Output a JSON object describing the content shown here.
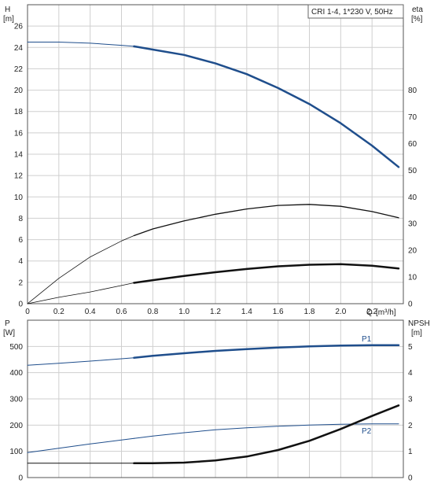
{
  "chart_data": [
    {
      "type": "line",
      "title": "CRI 1-4, 1*230 V, 50Hz",
      "xlabel": "Q [m³/h]",
      "xlim": [
        0,
        2.4
      ],
      "x_ticks": [
        0,
        0.2,
        0.4,
        0.6,
        0.8,
        1.0,
        1.2,
        1.4,
        1.6,
        1.8,
        2.0,
        2.2
      ],
      "y_left": {
        "label": "H",
        "unit": "[m]",
        "lim": [
          0,
          28
        ],
        "ticks": [
          0,
          2,
          4,
          6,
          8,
          10,
          12,
          14,
          16,
          18,
          20,
          22,
          24,
          26
        ]
      },
      "y_right": {
        "label": "eta",
        "unit": "[%]",
        "lim": [
          0,
          112
        ],
        "ticks": [
          0,
          10,
          20,
          30,
          40,
          50,
          60,
          70,
          80
        ]
      },
      "grid": true,
      "series": [
        {
          "axis": "left",
          "color": "#1f4e8c",
          "width_thin": 1,
          "width_thick": 2.5,
          "thick_from_x": 0.68,
          "x": [
            0,
            0.2,
            0.4,
            0.6,
            0.68,
            0.8,
            1.0,
            1.2,
            1.4,
            1.6,
            1.8,
            2.0,
            2.2,
            2.37
          ],
          "y": [
            24.5,
            24.5,
            24.4,
            24.2,
            24.1,
            23.8,
            23.3,
            22.5,
            21.5,
            20.2,
            18.7,
            16.9,
            14.8,
            12.8
          ]
        },
        {
          "axis": "right",
          "color": "#111111",
          "width_thin": 0.8,
          "width_thick": 1.3,
          "thick_from_x": 0.68,
          "x": [
            0,
            0.2,
            0.4,
            0.6,
            0.68,
            0.8,
            1.0,
            1.2,
            1.4,
            1.6,
            1.8,
            2.0,
            2.2,
            2.37
          ],
          "y": [
            0,
            9.5,
            17.5,
            23.5,
            25.5,
            28,
            31,
            33.5,
            35.5,
            36.8,
            37.2,
            36.5,
            34.5,
            32.2
          ]
        },
        {
          "axis": "left",
          "color": "#111111",
          "width_thin": 0.8,
          "width_thick": 2.5,
          "thick_from_x": 0.68,
          "x": [
            0,
            0.2,
            0.4,
            0.6,
            0.68,
            0.8,
            1.0,
            1.2,
            1.4,
            1.6,
            1.8,
            2.0,
            2.2,
            2.37
          ],
          "y": [
            0,
            0.6,
            1.1,
            1.7,
            1.95,
            2.2,
            2.6,
            2.95,
            3.25,
            3.5,
            3.65,
            3.7,
            3.55,
            3.3
          ]
        }
      ]
    },
    {
      "type": "line",
      "xlim": [
        0,
        2.4
      ],
      "x_ticks": [
        0,
        0.2,
        0.4,
        0.6,
        0.8,
        1.0,
        1.2,
        1.4,
        1.6,
        1.8,
        2.0,
        2.2
      ],
      "y_left": {
        "label": "P",
        "unit": "[W]",
        "lim": [
          0,
          600
        ],
        "ticks": [
          0,
          100,
          200,
          300,
          400,
          500
        ]
      },
      "y_right": {
        "label": "NPSH",
        "unit": "[m]",
        "lim": [
          0,
          6
        ],
        "ticks": [
          0,
          1,
          2,
          3,
          4,
          5
        ]
      },
      "grid": true,
      "series": [
        {
          "name": "P1",
          "axis": "left",
          "color": "#1f4e8c",
          "width_thin": 1,
          "width_thick": 2.5,
          "thick_from_x": 0.68,
          "x": [
            0,
            0.2,
            0.4,
            0.6,
            0.68,
            0.8,
            1.0,
            1.2,
            1.4,
            1.6,
            1.8,
            2.0,
            2.2,
            2.37
          ],
          "y": [
            428,
            436,
            444,
            453,
            457,
            464,
            474,
            483,
            490,
            496,
            500,
            503,
            505,
            505
          ]
        },
        {
          "name": "P2",
          "axis": "left",
          "color": "#1f4e8c",
          "width_thin": 1,
          "width_thick": 1,
          "thick_from_x": 0.68,
          "x": [
            0,
            0.2,
            0.4,
            0.6,
            0.68,
            0.8,
            1.0,
            1.2,
            1.4,
            1.6,
            1.8,
            2.0,
            2.2,
            2.37
          ],
          "y": [
            95,
            112,
            128,
            143,
            149,
            158,
            171,
            182,
            190,
            196,
            200,
            203,
            205,
            205
          ]
        },
        {
          "axis": "right",
          "color": "#111111",
          "width_thin": 1,
          "width_thick": 2.5,
          "thick_from_x": 0.68,
          "x": [
            0,
            0.68,
            0.8,
            1.0,
            1.2,
            1.4,
            1.6,
            1.8,
            2.0,
            2.2,
            2.37
          ],
          "y": [
            0.55,
            0.55,
            0.55,
            0.57,
            0.65,
            0.8,
            1.05,
            1.4,
            1.85,
            2.35,
            2.75
          ]
        }
      ]
    }
  ],
  "xlabel_short": "Q",
  "xlabel_unit": "[m³/h]"
}
